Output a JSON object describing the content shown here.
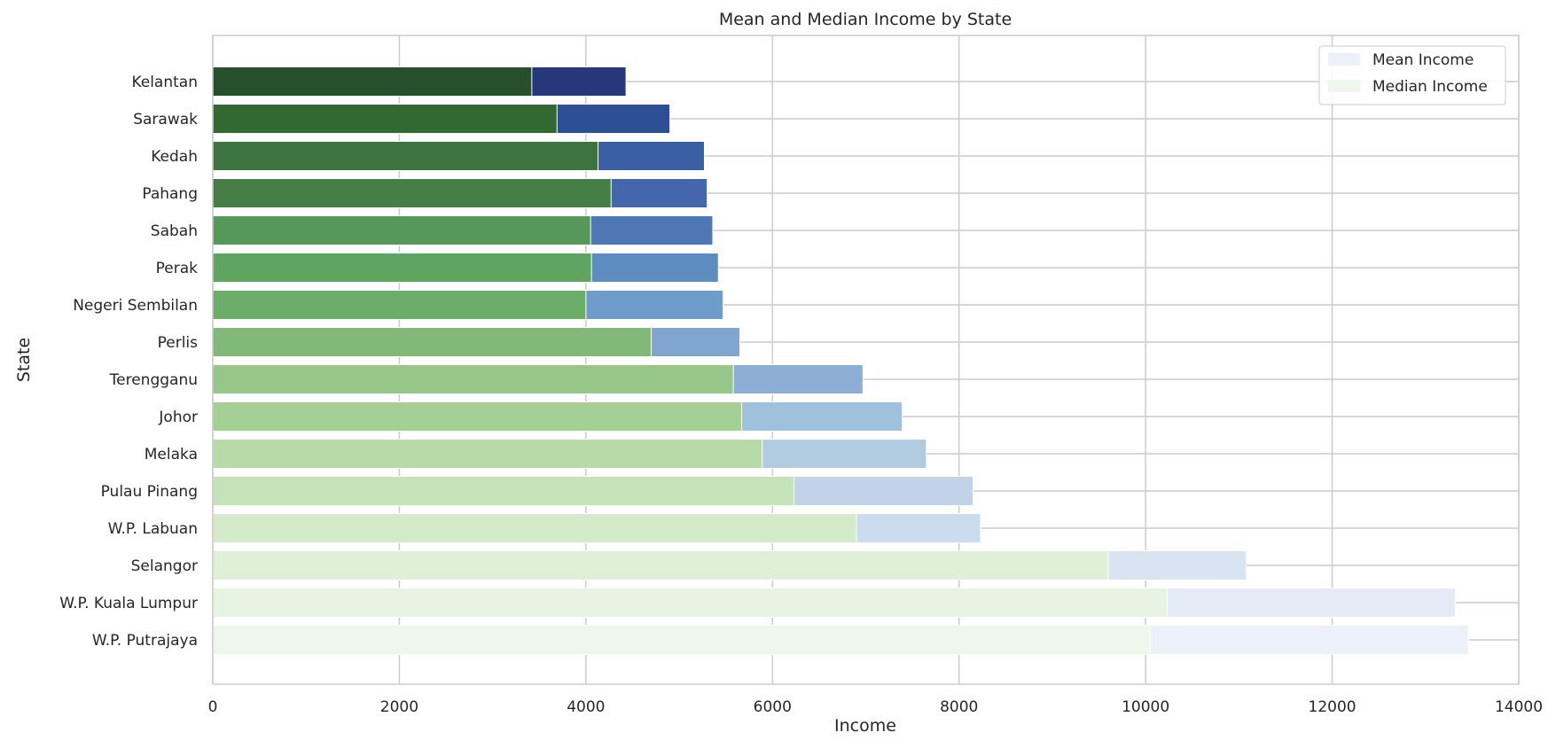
{
  "chart_data": {
    "type": "bar",
    "orientation": "horizontal",
    "title": "Mean and Median Income by State",
    "xlabel": "Income",
    "ylabel": "State",
    "xlim": [
      0,
      14000
    ],
    "xticks": [
      0,
      2000,
      4000,
      6000,
      8000,
      10000,
      12000,
      14000
    ],
    "grid": true,
    "legend_position": "top-right",
    "categories": [
      "Kelantan",
      "Sarawak",
      "Kedah",
      "Pahang",
      "Sabah",
      "Perak",
      "Negeri Sembilan",
      "Perlis",
      "Terengganu",
      "Johor",
      "Melaka",
      "Pulau Pinang",
      "W.P. Labuan",
      "Selangor",
      "W.P. Kuala Lumpur",
      "W.P. Putrajaya"
    ],
    "series": [
      {
        "name": "Mean Income",
        "colors": [
          "#26387a",
          "#2e4f93",
          "#3b5fa3",
          "#4466aa",
          "#5077b5",
          "#5f8cc0",
          "#6e9bca",
          "#7ea6cf",
          "#8daed4",
          "#9fc1dc",
          "#b1cbe0",
          "#c3d3e7",
          "#cddbee",
          "#d9e4f3",
          "#e4ebf6",
          "#ebf0f9"
        ],
        "values": [
          4430,
          4900,
          5270,
          5300,
          5360,
          5420,
          5470,
          5650,
          6970,
          7390,
          7650,
          8150,
          8230,
          11080,
          13320,
          13460
        ]
      },
      {
        "name": "Median Income",
        "colors": [
          "#264f2b",
          "#336833",
          "#3d733f",
          "#457f47",
          "#56975a",
          "#60a462",
          "#6dad6a",
          "#81ba78",
          "#97c68a",
          "#a5d095",
          "#b7dba8",
          "#c5e3b8",
          "#d4eac8",
          "#e0f0d7",
          "#e8f4e3",
          "#eef7ec"
        ],
        "values": [
          3420,
          3690,
          4130,
          4270,
          4050,
          4060,
          4000,
          4700,
          5580,
          5670,
          5890,
          6230,
          6900,
          9600,
          10230,
          10050
        ]
      }
    ]
  }
}
